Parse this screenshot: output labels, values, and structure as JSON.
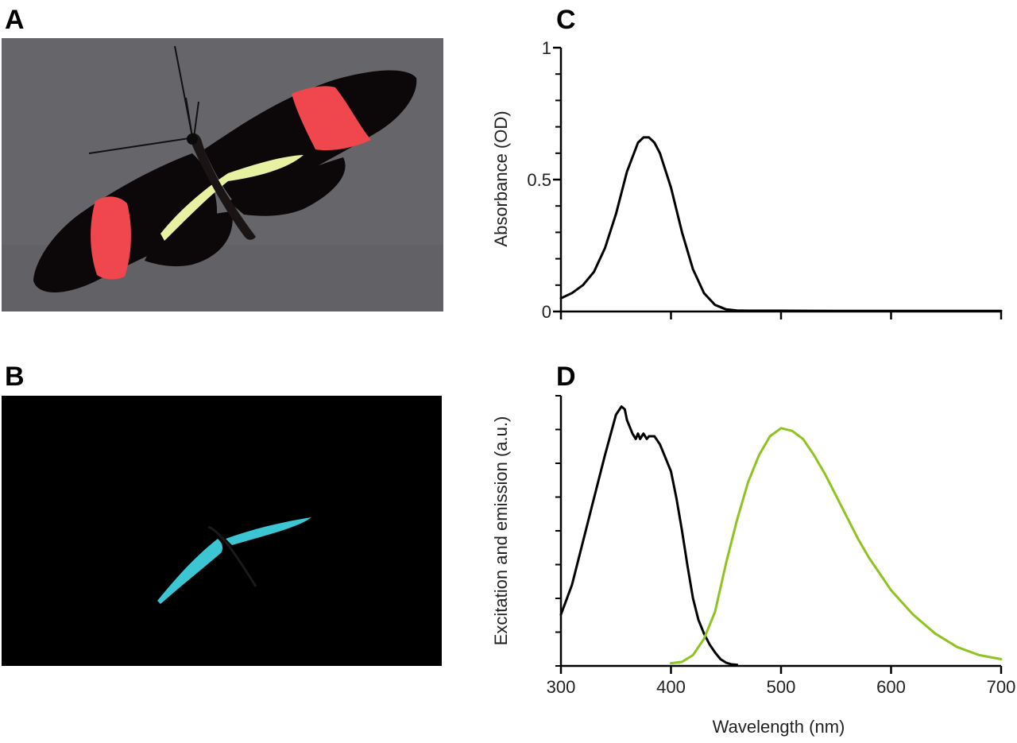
{
  "panels": {
    "a": "A",
    "b": "B",
    "c": "C",
    "d": "D"
  },
  "photo_a": {
    "subject_icon": "butterfly-icon",
    "background_color": "#66666a",
    "wing_color": "#0c0809",
    "forewing_patch_color": "#f0464e",
    "hindwing_band_color": "#e6f2a2"
  },
  "photo_b": {
    "subject_icon": "butterfly-fluorescence-icon",
    "background_color": "#000000",
    "fluorescence_color": "#3cc6d4"
  },
  "chart_data": [
    {
      "panel": "C",
      "type": "line",
      "title": "",
      "xlabel": "",
      "ylabel": "Absorbance (OD)",
      "xlim": [
        300,
        700
      ],
      "ylim": [
        0,
        1
      ],
      "yticks": [
        0,
        0.5,
        1
      ],
      "ytick_labels": [
        "0",
        "0.5",
        "1"
      ],
      "xticks": [
        300,
        400,
        500,
        600,
        700
      ],
      "xtick_labels_shown": false,
      "grid": false,
      "legend": "none",
      "series": [
        {
          "color": "#000000",
          "x": [
            300,
            310,
            320,
            330,
            340,
            350,
            360,
            370,
            375,
            380,
            385,
            390,
            400,
            410,
            420,
            430,
            440,
            450,
            460,
            470,
            500,
            550,
            600,
            650,
            700
          ],
          "y": [
            0.05,
            0.07,
            0.1,
            0.15,
            0.24,
            0.37,
            0.53,
            0.64,
            0.66,
            0.66,
            0.64,
            0.6,
            0.47,
            0.3,
            0.16,
            0.07,
            0.025,
            0.008,
            0.004,
            0.003,
            0.003,
            0.002,
            0.002,
            0.002,
            0.002
          ]
        }
      ]
    },
    {
      "panel": "D",
      "type": "line",
      "title": "",
      "xlabel": "Wavelength (nm)",
      "ylabel": "Excitation and emission (a.u.)",
      "xlim": [
        300,
        700
      ],
      "ylim": [
        0,
        1
      ],
      "xticks": [
        300,
        400,
        500,
        600,
        700
      ],
      "xtick_labels": [
        "300",
        "400",
        "500",
        "600",
        "700"
      ],
      "ytick_labels_shown": false,
      "grid": false,
      "legend": "none",
      "series": [
        {
          "color": "#000000",
          "x": [
            300,
            310,
            320,
            330,
            340,
            350,
            355,
            358,
            360,
            365,
            368,
            370,
            372,
            375,
            378,
            380,
            385,
            390,
            395,
            400,
            405,
            410,
            415,
            420,
            425,
            430,
            435,
            440,
            445,
            450,
            455,
            460
          ],
          "y": [
            0.19,
            0.3,
            0.46,
            0.62,
            0.78,
            0.93,
            0.96,
            0.95,
            0.91,
            0.86,
            0.84,
            0.86,
            0.84,
            0.86,
            0.84,
            0.85,
            0.85,
            0.82,
            0.77,
            0.72,
            0.62,
            0.5,
            0.37,
            0.25,
            0.17,
            0.12,
            0.08,
            0.05,
            0.025,
            0.012,
            0.006,
            0.004
          ]
        },
        {
          "color": "#8fc320",
          "x": [
            400,
            410,
            420,
            430,
            440,
            450,
            460,
            470,
            480,
            490,
            500,
            510,
            520,
            530,
            540,
            550,
            560,
            570,
            580,
            590,
            600,
            620,
            640,
            660,
            680,
            700
          ],
          "y": [
            0.01,
            0.015,
            0.04,
            0.1,
            0.2,
            0.38,
            0.54,
            0.68,
            0.78,
            0.85,
            0.88,
            0.87,
            0.84,
            0.78,
            0.71,
            0.63,
            0.55,
            0.47,
            0.4,
            0.34,
            0.28,
            0.19,
            0.12,
            0.07,
            0.04,
            0.025
          ]
        }
      ]
    }
  ]
}
